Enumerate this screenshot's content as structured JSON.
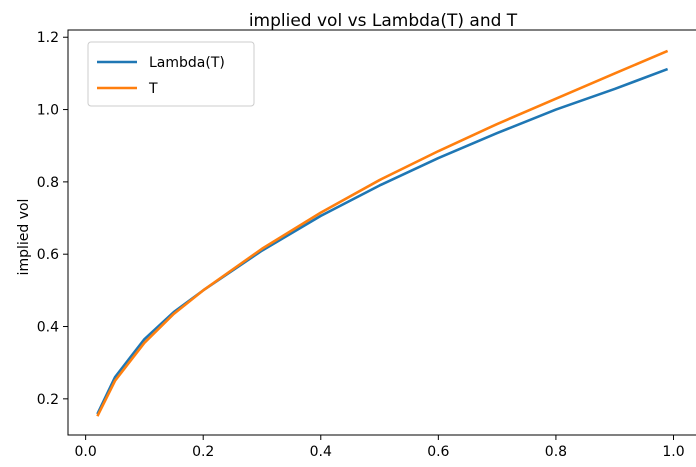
{
  "chart_data": {
    "type": "line",
    "title": "implied vol vs Lambda(T) and T",
    "xlabel": "",
    "ylabel": "implied vol",
    "xlim": [
      -0.03,
      1.04
    ],
    "ylim": [
      0.1,
      1.22
    ],
    "xticks": [
      0.0,
      0.2,
      0.4,
      0.6,
      0.8,
      1.0
    ],
    "xtick_labels": [
      "0.0",
      "0.2",
      "0.4",
      "0.6",
      "0.8",
      "1.0"
    ],
    "yticks": [
      0.2,
      0.4,
      0.6,
      0.8,
      1.0,
      1.2
    ],
    "ytick_labels": [
      "0.2",
      "0.4",
      "0.6",
      "0.8",
      "1.0",
      "1.2"
    ],
    "grid": false,
    "legend_position": "top-left",
    "series": [
      {
        "name": "Lambda(T)",
        "color": "#1f77b4",
        "x": [
          0.02,
          0.05,
          0.1,
          0.15,
          0.2,
          0.3,
          0.4,
          0.5,
          0.6,
          0.7,
          0.8,
          0.9,
          0.99
        ],
        "y": [
          0.158,
          0.26,
          0.365,
          0.44,
          0.5,
          0.61,
          0.706,
          0.79,
          0.866,
          0.935,
          1.0,
          1.057,
          1.112
        ]
      },
      {
        "name": "T",
        "color": "#ff7f0e",
        "x": [
          0.02,
          0.05,
          0.1,
          0.15,
          0.2,
          0.3,
          0.4,
          0.5,
          0.6,
          0.7,
          0.8,
          0.9,
          0.99
        ],
        "y": [
          0.152,
          0.25,
          0.355,
          0.435,
          0.5,
          0.615,
          0.715,
          0.805,
          0.885,
          0.96,
          1.03,
          1.1,
          1.162
        ]
      }
    ]
  }
}
